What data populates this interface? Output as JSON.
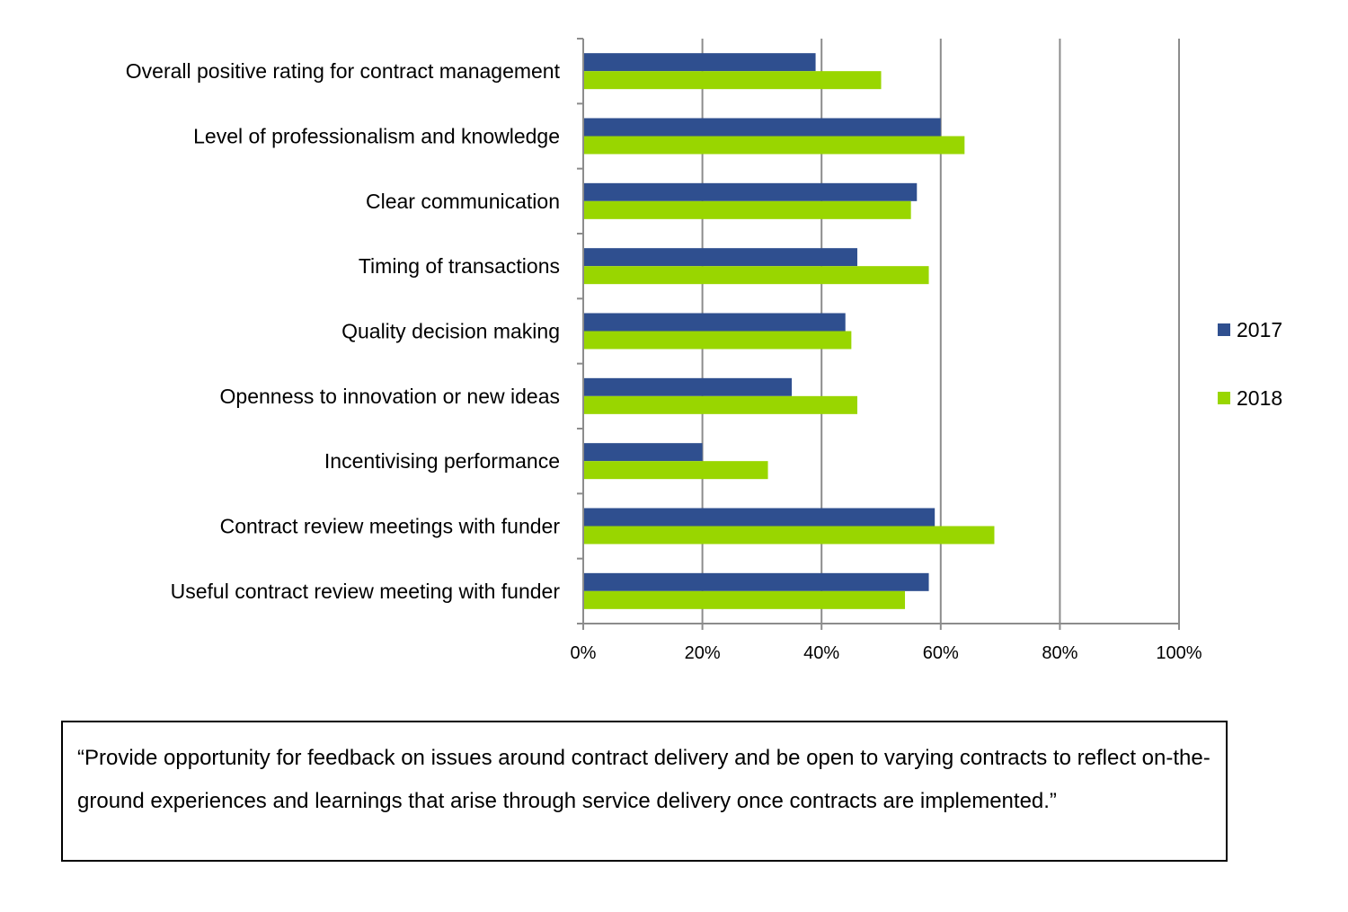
{
  "chart_data": {
    "type": "bar",
    "orientation": "horizontal",
    "categories": [
      "Overall positive rating for contract management",
      "Level of professionalism and knowledge",
      "Clear communication",
      "Timing of transactions",
      "Quality decision making",
      "Openness to innovation or new ideas",
      "Incentivising performance",
      "Contract review meetings with funder",
      "Useful contract review meeting with funder"
    ],
    "series": [
      {
        "name": "2017",
        "color": "#2f4f8f",
        "values": [
          39,
          60,
          56,
          46,
          44,
          35,
          20,
          59,
          58
        ]
      },
      {
        "name": "2018",
        "color": "#99d600",
        "values": [
          50,
          64,
          55,
          58,
          45,
          46,
          31,
          69,
          54
        ]
      }
    ],
    "xlim": [
      0,
      100
    ],
    "xticks": [
      "0%",
      "20%",
      "40%",
      "60%",
      "80%",
      "100%"
    ],
    "grid": true,
    "legend": "right"
  },
  "quote": "“Provide opportunity for feedback on issues around contract delivery and be open to varying contracts to reflect on-the-ground experiences and learnings that arise through service delivery once contracts are implemented.”"
}
